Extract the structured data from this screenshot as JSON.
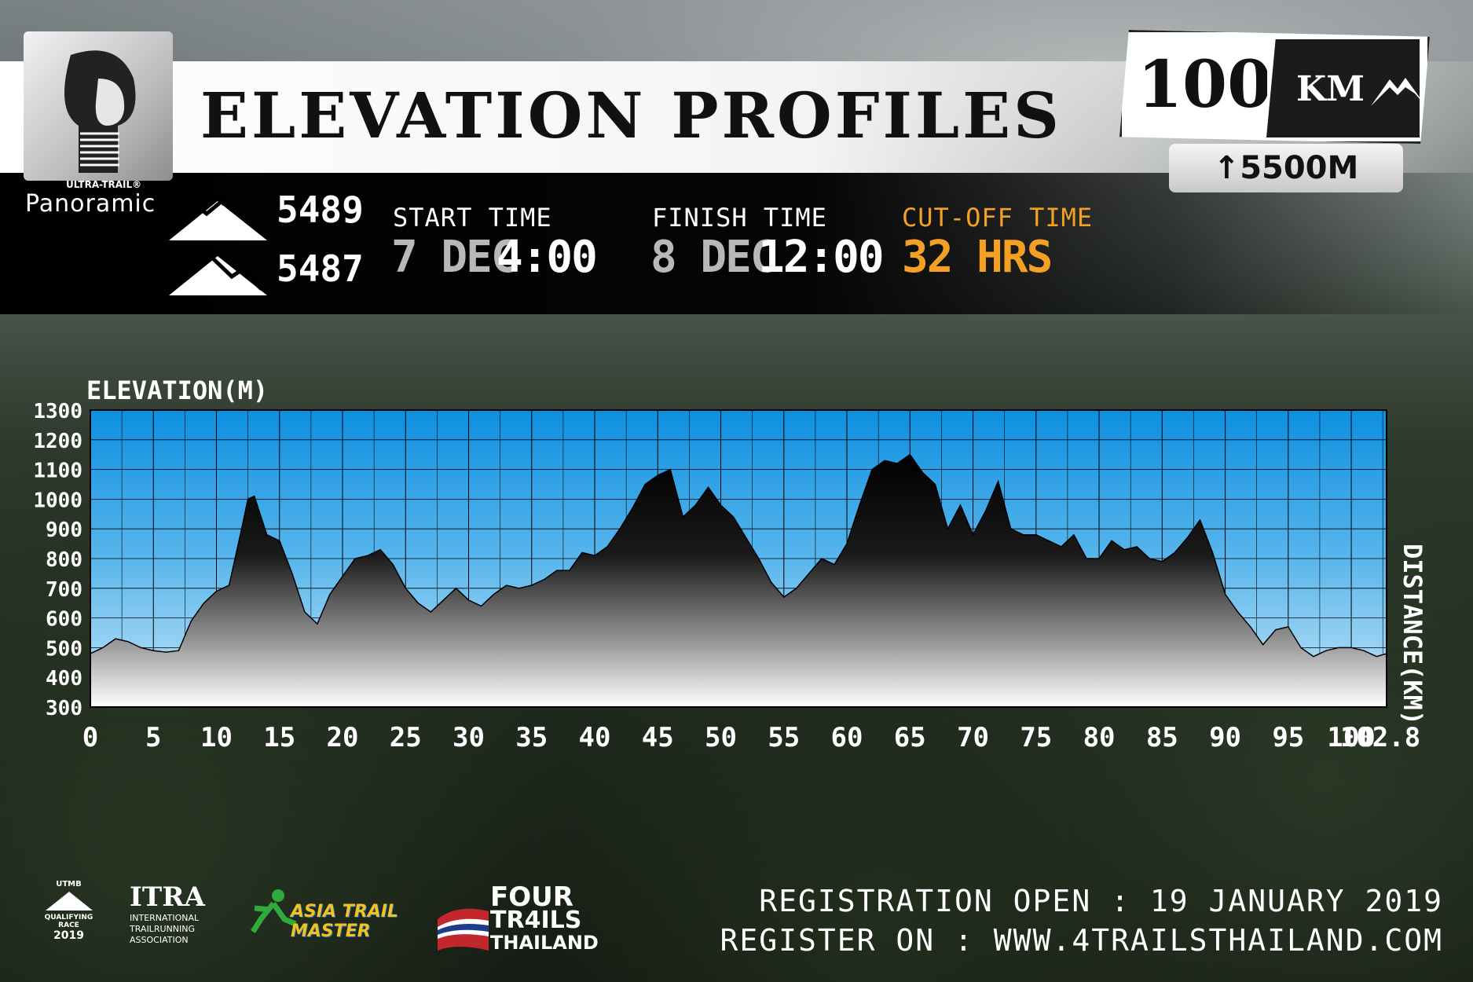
{
  "header": {
    "title": "ELEVATION PROFILES",
    "brand_small": "ULTRA-TRAIL®",
    "brand_name": "Panoramic"
  },
  "badge": {
    "distance": "100",
    "unit": "KM",
    "gain": "5500M",
    "gain_icon": "up-arrow-icon"
  },
  "stats": {
    "ascent": "5489",
    "descent": "5487",
    "ascent_icon": "mountain-ascent-icon",
    "descent_icon": "mountain-descent-icon",
    "start_label": "START TIME",
    "start_date": "7 DEC",
    "start_time": "4:00",
    "finish_label": "FINISH TIME",
    "finish_date": "8 DEC",
    "finish_time": "12:00",
    "cutoff_label": "CUT-OFF TIME",
    "cutoff_value": "32 HRS",
    "cutoff_color": "#f4a024"
  },
  "chart_data": {
    "type": "area",
    "title": "",
    "ylabel": "ELEVATION(M)",
    "xlabel": "DISTANCE(KM)",
    "xlim": [
      0,
      102.8
    ],
    "ylim": [
      300,
      1300
    ],
    "yticks": [
      300,
      400,
      500,
      600,
      700,
      800,
      900,
      1000,
      1100,
      1200,
      1300
    ],
    "xticks": [
      "0",
      "5",
      "10",
      "15",
      "20",
      "25",
      "30",
      "35",
      "40",
      "45",
      "50",
      "55",
      "60",
      "65",
      "70",
      "75",
      "80",
      "85",
      "90",
      "95",
      "100",
      "102.8"
    ],
    "grid": true,
    "x": [
      0,
      1,
      2,
      3,
      4,
      5,
      6,
      7,
      8,
      9,
      10,
      11,
      12,
      12.5,
      13,
      14,
      15,
      16,
      17,
      18,
      19,
      20,
      21,
      22,
      23,
      24,
      25,
      26,
      27,
      28,
      29,
      30,
      31,
      32,
      33,
      34,
      35,
      36,
      37,
      38,
      39,
      40,
      41,
      42,
      43,
      44,
      45,
      46,
      47,
      48,
      49,
      50,
      51,
      52,
      53,
      54,
      55,
      56,
      57,
      58,
      59,
      60,
      61,
      62,
      63,
      64,
      65,
      66,
      67,
      68,
      69,
      70,
      71,
      72,
      73,
      74,
      75,
      76,
      77,
      78,
      79,
      80,
      81,
      82,
      83,
      84,
      85,
      86,
      87,
      88,
      89,
      90,
      91,
      92,
      93,
      94,
      95,
      96,
      97,
      98,
      99,
      100,
      101,
      102,
      102.8
    ],
    "y": [
      480,
      500,
      530,
      520,
      500,
      490,
      485,
      490,
      590,
      650,
      690,
      710,
      900,
      1000,
      1010,
      880,
      860,
      750,
      620,
      580,
      680,
      740,
      800,
      810,
      830,
      780,
      700,
      650,
      620,
      660,
      700,
      660,
      640,
      680,
      710,
      700,
      710,
      730,
      760,
      760,
      820,
      810,
      840,
      900,
      970,
      1050,
      1080,
      1100,
      940,
      980,
      1040,
      980,
      940,
      870,
      800,
      720,
      670,
      700,
      750,
      800,
      780,
      850,
      980,
      1100,
      1130,
      1120,
      1150,
      1090,
      1050,
      900,
      980,
      880,
      960,
      1060,
      900,
      880,
      880,
      860,
      840,
      880,
      800,
      800,
      860,
      830,
      840,
      800,
      790,
      820,
      870,
      930,
      820,
      680,
      620,
      570,
      510,
      560,
      570,
      500,
      470,
      490,
      500,
      500,
      490,
      470,
      480
    ]
  },
  "footer": {
    "line1": "REGISTRATION OPEN : 19 JANUARY 2019",
    "line2": "REGISTER ON : WWW.4TRAILSTHAILAND.COM",
    "utmb_top": "UTMB",
    "utmb_sub": "QUALIFYING RACE",
    "utmb_year": "2019",
    "itra_name": "ITRA",
    "itra_sub": "INTERNATIONAL TRAILRUNNING ASSOCIATION",
    "atm_name": "ASIA TRAIL MASTER",
    "fourtrails_line1": "FOUR",
    "fourtrails_line2": "TR4ILS",
    "fourtrails_line3": "THAILAND"
  }
}
